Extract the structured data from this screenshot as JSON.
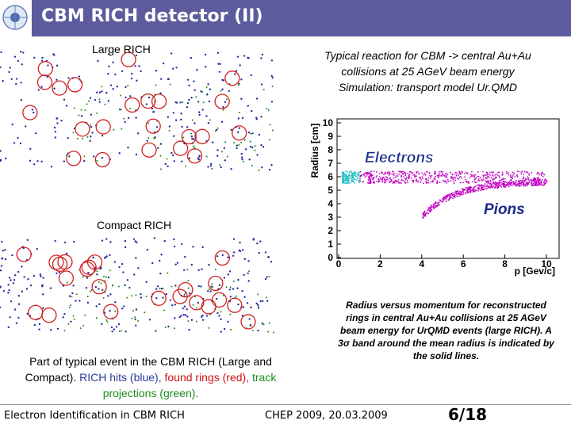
{
  "header": {
    "title": "CBM RICH detector (II)"
  },
  "left_panel": {
    "large_label": "Large RICH",
    "compact_label": "Compact RICH",
    "caption": [
      "Part of typical event in the CBM RICH (Large and Compact).  ",
      "RICH hits (blue), ",
      "found rings (red), ",
      "track projections (green)",
      "."
    ]
  },
  "reaction_text": [
    "Typical reaction for CBM -> central Au+Au",
    "collisions at 25 AGeV beam energy",
    "Simulation: transport model Ur.QMD"
  ],
  "plot": {
    "y_label": "Radius [cm]",
    "x_label": "p [Gev/c]",
    "yticks": [
      0,
      1,
      2,
      3,
      4,
      5,
      6,
      7,
      8,
      9,
      10
    ],
    "xticks": [
      0,
      2,
      4,
      6,
      8,
      10
    ],
    "electrons_label": "Electrons",
    "pions_label": "Pions"
  },
  "plot_caption": "Radius versus momentum for reconstructed rings in central Au+Au collisions at 25 AGeV beam energy for UrQMD events (large RICH). A 3σ band around the mean radius is indicated by the solid lines.",
  "footer": {
    "left": "Electron Identification in CBM RICH",
    "center": "CHEP 2009, 20.03.2009",
    "page": "6/18"
  }
}
